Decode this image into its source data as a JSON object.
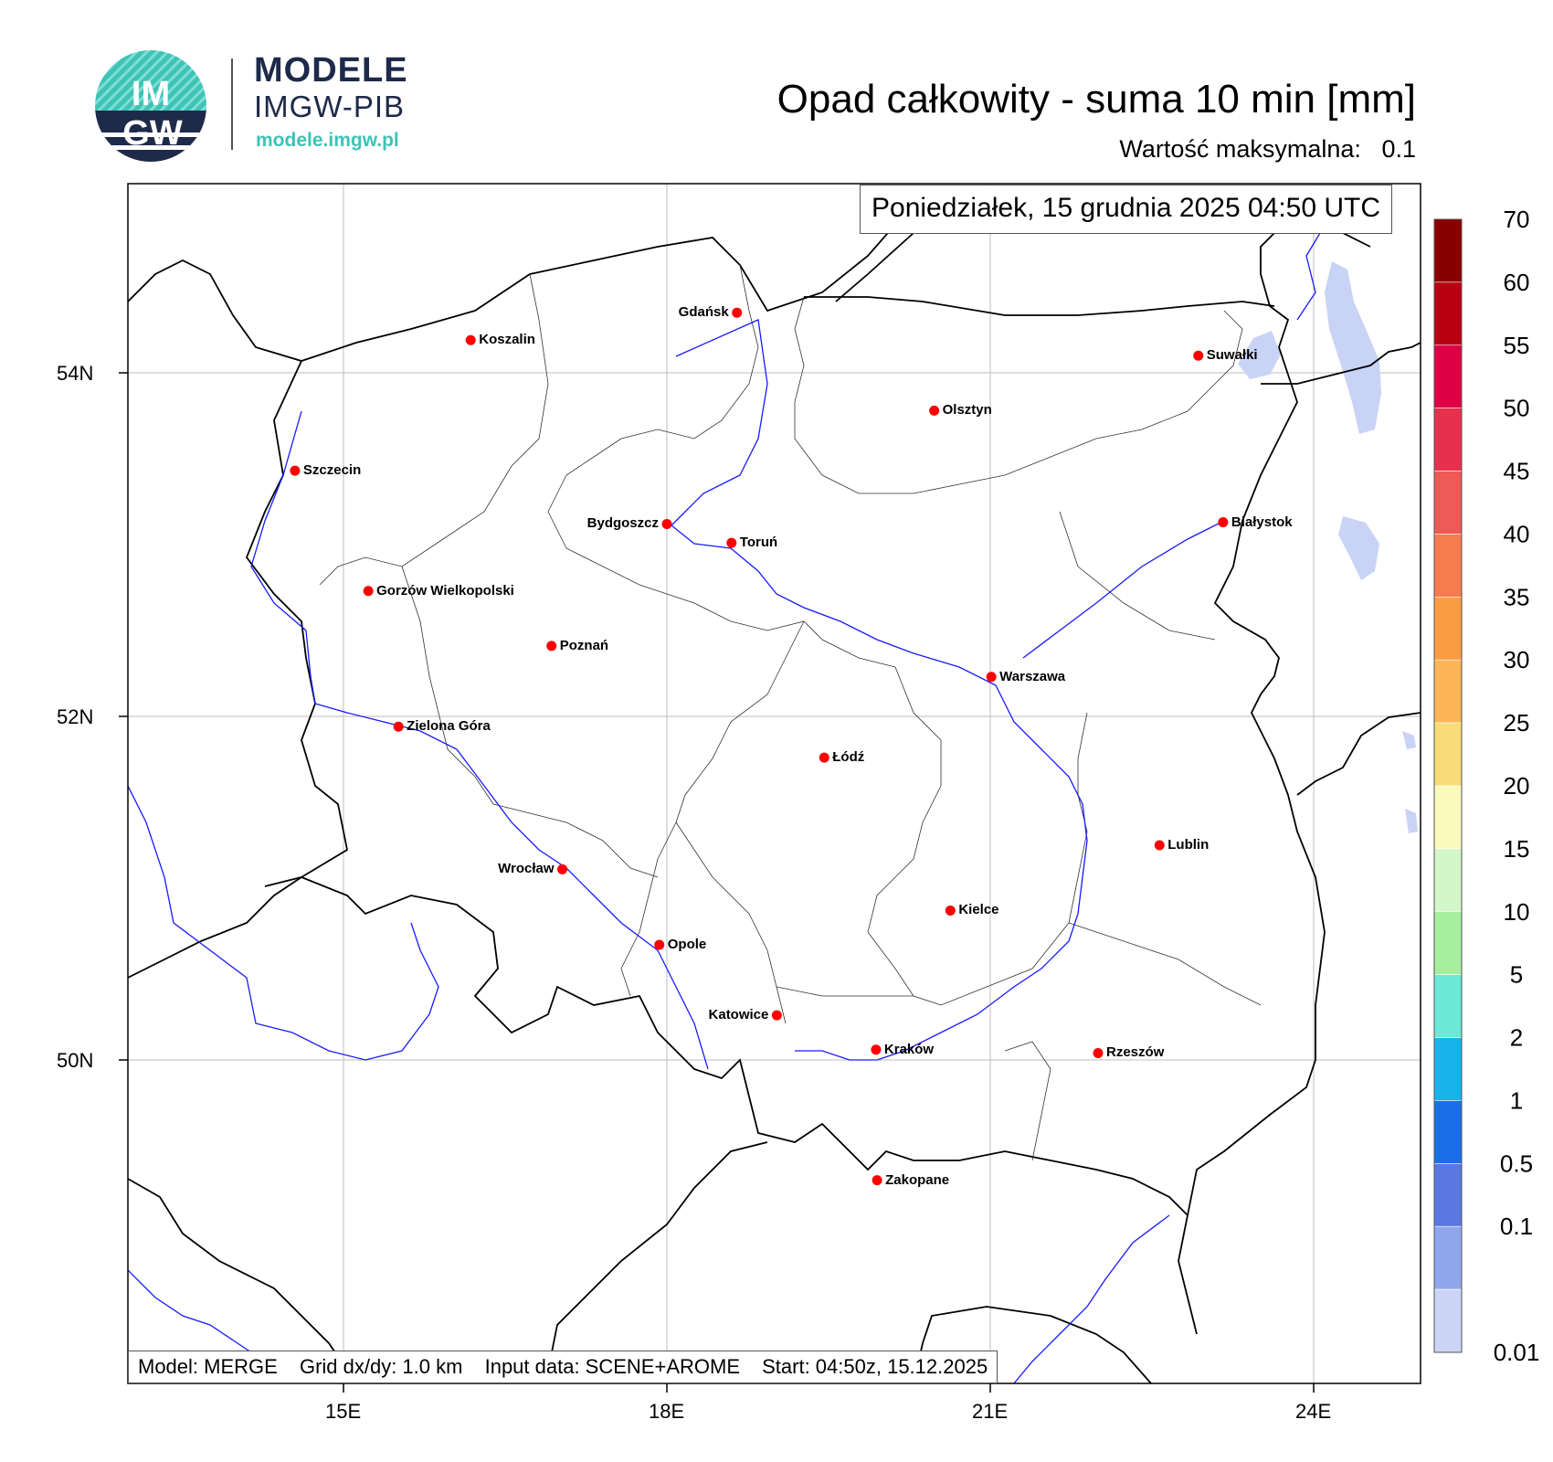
{
  "branding": {
    "logo_text_top": "IM",
    "logo_text_bottom": "GW",
    "title": "MODELE",
    "subtitle": "IMGW-PIB",
    "url": "modele.imgw.pl",
    "colors": {
      "teal": "#3ec3b6",
      "navy": "#1e2a4a"
    }
  },
  "header": {
    "title": "Opad całkowity - suma 10 min [mm]",
    "max_label": "Wartość maksymalna:",
    "max_value": "0.1"
  },
  "map": {
    "date": "Poniedziałek, 15 grudnia 2025 04:50 UTC",
    "info": {
      "model": "Model: MERGE",
      "grid": "Grid dx/dy: 1.0 km",
      "input": "Input data: SCENE+AROME",
      "start": "Start: 04:50z, 15.12.2025"
    },
    "lat_labels": [
      "54N",
      "52N",
      "50N"
    ],
    "lon_labels": [
      "15E",
      "18E",
      "21E",
      "24E"
    ],
    "cities": [
      {
        "name": "Gdańsk",
        "lon": 18.65,
        "lat": 54.35
      },
      {
        "name": "Koszalin",
        "lon": 16.18,
        "lat": 54.19
      },
      {
        "name": "Suwałki",
        "lon": 22.93,
        "lat": 54.1
      },
      {
        "name": "Olsztyn",
        "lon": 20.48,
        "lat": 53.78
      },
      {
        "name": "Szczecin",
        "lon": 14.55,
        "lat": 53.43
      },
      {
        "name": "Białystok",
        "lon": 23.16,
        "lat": 53.13
      },
      {
        "name": "Bydgoszcz",
        "lon": 18.0,
        "lat": 53.12
      },
      {
        "name": "Toruń",
        "lon": 18.6,
        "lat": 53.01
      },
      {
        "name": "Gorzów Wielkopolski",
        "lon": 15.23,
        "lat": 52.73
      },
      {
        "name": "Poznań",
        "lon": 16.93,
        "lat": 52.41
      },
      {
        "name": "Warszawa",
        "lon": 21.01,
        "lat": 52.23
      },
      {
        "name": "Zielona Góra",
        "lon": 15.51,
        "lat": 51.94
      },
      {
        "name": "Łódź",
        "lon": 19.46,
        "lat": 51.76
      },
      {
        "name": "Lublin",
        "lon": 22.57,
        "lat": 51.25
      },
      {
        "name": "Wrocław",
        "lon": 17.03,
        "lat": 51.11
      },
      {
        "name": "Kielce",
        "lon": 20.63,
        "lat": 50.87
      },
      {
        "name": "Opole",
        "lon": 17.93,
        "lat": 50.67
      },
      {
        "name": "Katowice",
        "lon": 19.02,
        "lat": 50.26
      },
      {
        "name": "Kraków",
        "lon": 19.94,
        "lat": 50.06
      },
      {
        "name": "Rzeszów",
        "lon": 22.0,
        "lat": 50.04
      },
      {
        "name": "Zakopane",
        "lon": 19.95,
        "lat": 49.3
      }
    ],
    "colors": {
      "city_dot": "#ff0000",
      "river": "#1a1aff",
      "lake": "#c9d3f5",
      "border": "#000000"
    }
  },
  "colorbar": {
    "labels": [
      "70",
      "60",
      "55",
      "50",
      "45",
      "40",
      "35",
      "30",
      "25",
      "20",
      "15",
      "10",
      "5",
      "2",
      "1",
      "0.5",
      "0.1",
      "0.01"
    ],
    "colors": [
      "#8a0000",
      "#b80012",
      "#dd0045",
      "#e6304d",
      "#ee5a56",
      "#f67c4f",
      "#fb9c43",
      "#fdb558",
      "#f8dc78",
      "#fcf9bd",
      "#d3f7c8",
      "#a7ef9e",
      "#6ce9d6",
      "#17b3ec",
      "#1a6fe8",
      "#5a78e0",
      "#8fa6ec",
      "#cbd4f5"
    ]
  }
}
